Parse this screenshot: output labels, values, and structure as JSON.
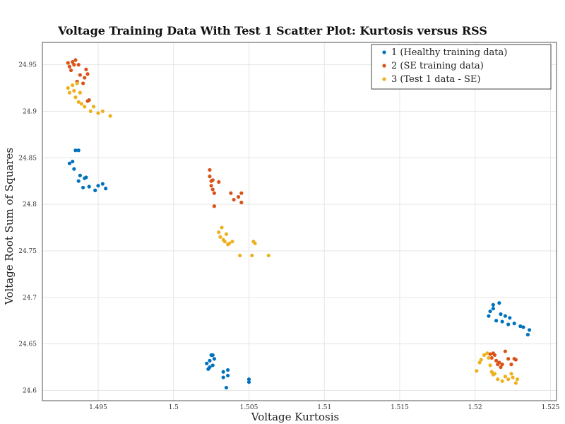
{
  "chart_data": {
    "type": "scatter",
    "title": "Voltage Training Data With Test 1 Scatter Plot: Kurtosis versus RSS",
    "xlabel": "Voltage Kurtosis",
    "ylabel": "Voltage Root Sum of Squares",
    "xlim": [
      1.4913,
      1.5254
    ],
    "ylim": [
      24.589,
      24.974
    ],
    "xticks": [
      1.495,
      1.5,
      1.505,
      1.51,
      1.515,
      1.52,
      1.525
    ],
    "xtick_labels": [
      "1.495",
      "1.5",
      "1.505",
      "1.51",
      "1.515",
      "1.52",
      "1.525"
    ],
    "yticks": [
      24.6,
      24.65,
      24.7,
      24.75,
      24.8,
      24.85,
      24.9,
      24.95
    ],
    "ytick_labels": [
      "24.6",
      "24.65",
      "24.7",
      "24.75",
      "24.8",
      "24.85",
      "24.9",
      "24.95"
    ],
    "grid": true,
    "legend_position": "top-right",
    "series": [
      {
        "name": "1 (Healthy training data)",
        "color": "#0072BD",
        "points": [
          [
            1.4931,
            24.844
          ],
          [
            1.4933,
            24.846
          ],
          [
            1.4935,
            24.858
          ],
          [
            1.4937,
            24.858
          ],
          [
            1.4934,
            24.838
          ],
          [
            1.4937,
            24.825
          ],
          [
            1.4938,
            24.831
          ],
          [
            1.4941,
            24.828
          ],
          [
            1.4942,
            24.829
          ],
          [
            1.494,
            24.818
          ],
          [
            1.4944,
            24.819
          ],
          [
            1.4948,
            24.815
          ],
          [
            1.495,
            24.82
          ],
          [
            1.4953,
            24.822
          ],
          [
            1.4955,
            24.817
          ],
          [
            1.5022,
            24.629
          ],
          [
            1.5024,
            24.632
          ],
          [
            1.5025,
            24.638
          ],
          [
            1.5026,
            24.638
          ],
          [
            1.5027,
            24.634
          ],
          [
            1.5024,
            24.625
          ],
          [
            1.5026,
            24.627
          ],
          [
            1.5023,
            24.623
          ],
          [
            1.5033,
            24.62
          ],
          [
            1.5033,
            24.614
          ],
          [
            1.5035,
            24.603
          ],
          [
            1.5036,
            24.616
          ],
          [
            1.5036,
            24.622
          ],
          [
            1.505,
            24.609
          ],
          [
            1.505,
            24.612
          ],
          [
            1.5209,
            24.68
          ],
          [
            1.521,
            24.685
          ],
          [
            1.5212,
            24.688
          ],
          [
            1.5212,
            24.692
          ],
          [
            1.5214,
            24.675
          ],
          [
            1.5216,
            24.694
          ],
          [
            1.5217,
            24.682
          ],
          [
            1.5218,
            24.674
          ],
          [
            1.522,
            24.68
          ],
          [
            1.5222,
            24.671
          ],
          [
            1.5223,
            24.678
          ],
          [
            1.5226,
            24.672
          ],
          [
            1.523,
            24.669
          ],
          [
            1.5232,
            24.668
          ],
          [
            1.5235,
            24.66
          ],
          [
            1.5236,
            24.665
          ]
        ]
      },
      {
        "name": "2 (SE training data)",
        "color": "#D95319",
        "points": [
          [
            1.493,
            24.952
          ],
          [
            1.4931,
            24.948
          ],
          [
            1.4932,
            24.944
          ],
          [
            1.4933,
            24.953
          ],
          [
            1.4934,
            24.95
          ],
          [
            1.4935,
            24.955
          ],
          [
            1.4936,
            24.932
          ],
          [
            1.4937,
            24.95
          ],
          [
            1.4938,
            24.939
          ],
          [
            1.494,
            24.93
          ],
          [
            1.4941,
            24.936
          ],
          [
            1.4942,
            24.945
          ],
          [
            1.4943,
            24.94
          ],
          [
            1.4943,
            24.911
          ],
          [
            1.4944,
            24.912
          ],
          [
            1.5024,
            24.837
          ],
          [
            1.5024,
            24.83
          ],
          [
            1.5025,
            24.825
          ],
          [
            1.5025,
            24.82
          ],
          [
            1.5026,
            24.826
          ],
          [
            1.5026,
            24.816
          ],
          [
            1.5027,
            24.812
          ],
          [
            1.5027,
            24.798
          ],
          [
            1.503,
            24.824
          ],
          [
            1.5038,
            24.812
          ],
          [
            1.504,
            24.805
          ],
          [
            1.5043,
            24.808
          ],
          [
            1.5045,
            24.812
          ],
          [
            1.5045,
            24.802
          ],
          [
            1.521,
            24.639
          ],
          [
            1.5211,
            24.635
          ],
          [
            1.5212,
            24.64
          ],
          [
            1.5213,
            24.638
          ],
          [
            1.5214,
            24.632
          ],
          [
            1.5215,
            24.628
          ],
          [
            1.5216,
            24.63
          ],
          [
            1.5217,
            24.625
          ],
          [
            1.5218,
            24.628
          ],
          [
            1.522,
            24.642
          ],
          [
            1.5222,
            24.634
          ],
          [
            1.5224,
            24.628
          ],
          [
            1.5226,
            24.634
          ],
          [
            1.5227,
            24.633
          ]
        ]
      },
      {
        "name": "3 (Test 1 data - SE)",
        "color": "#EDB120",
        "points": [
          [
            1.493,
            24.925
          ],
          [
            1.4931,
            24.92
          ],
          [
            1.4933,
            24.928
          ],
          [
            1.4934,
            24.922
          ],
          [
            1.4935,
            24.915
          ],
          [
            1.4936,
            24.93
          ],
          [
            1.4937,
            24.91
          ],
          [
            1.4938,
            24.92
          ],
          [
            1.4939,
            24.908
          ],
          [
            1.4941,
            24.905
          ],
          [
            1.4945,
            24.9
          ],
          [
            1.4947,
            24.905
          ],
          [
            1.495,
            24.898
          ],
          [
            1.4953,
            24.9
          ],
          [
            1.4958,
            24.895
          ],
          [
            1.503,
            24.77
          ],
          [
            1.5031,
            24.765
          ],
          [
            1.5032,
            24.775
          ],
          [
            1.5033,
            24.762
          ],
          [
            1.5034,
            24.76
          ],
          [
            1.5035,
            24.768
          ],
          [
            1.5036,
            24.757
          ],
          [
            1.5037,
            24.758
          ],
          [
            1.5039,
            24.76
          ],
          [
            1.5044,
            24.745
          ],
          [
            1.5052,
            24.745
          ],
          [
            1.5053,
            24.76
          ],
          [
            1.5054,
            24.758
          ],
          [
            1.5063,
            24.745
          ],
          [
            1.5201,
            24.621
          ],
          [
            1.5203,
            24.63
          ],
          [
            1.5204,
            24.633
          ],
          [
            1.5206,
            24.638
          ],
          [
            1.5208,
            24.64
          ],
          [
            1.5209,
            24.635
          ],
          [
            1.521,
            24.627
          ],
          [
            1.5211,
            24.62
          ],
          [
            1.5212,
            24.617
          ],
          [
            1.5213,
            24.618
          ],
          [
            1.5215,
            24.612
          ],
          [
            1.5218,
            24.61
          ],
          [
            1.522,
            24.615
          ],
          [
            1.5222,
            24.612
          ],
          [
            1.5224,
            24.618
          ],
          [
            1.5225,
            24.614
          ],
          [
            1.5227,
            24.608
          ],
          [
            1.5228,
            24.612
          ]
        ]
      }
    ]
  }
}
